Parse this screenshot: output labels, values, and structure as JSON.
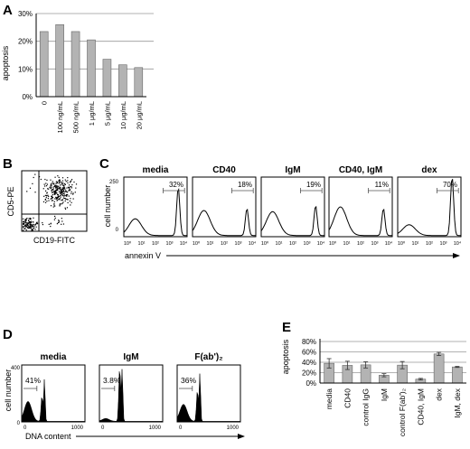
{
  "panels": {
    "A": {
      "letter": "A"
    },
    "B": {
      "letter": "B",
      "xlabel": "CD19-FITC",
      "ylabel": "CD5-PE"
    },
    "C": {
      "letter": "C",
      "ylabel": "cell number",
      "xlabel": "annexin V",
      "ytick_top": "250"
    },
    "D": {
      "letter": "D",
      "ylabel": "cell number",
      "xlabel": "DNA content",
      "ytick_top": "400",
      "xtick_left": "0",
      "xtick_right": "1000"
    },
    "E": {
      "letter": "E"
    }
  },
  "colors": {
    "bar_fill": "#b3b3b3",
    "bar_stroke": "#666666",
    "line": "#000000",
    "grid": "#999999"
  },
  "chart_data": [
    {
      "id": "A",
      "type": "bar",
      "categories": [
        "0",
        "100 ng/mL",
        "500 ng/mL",
        "1 µg/mL",
        "5 µg/mL",
        "10 µg/mL",
        "20 µg/mL"
      ],
      "values": [
        23.5,
        26,
        23.5,
        20.5,
        13.5,
        11.5,
        10.5
      ],
      "ylabel": "apoptosis",
      "ylim": [
        0,
        30
      ],
      "yticks": [
        "0%",
        "10%",
        "20%",
        "30%"
      ],
      "grid": true
    },
    {
      "id": "B",
      "type": "scatter",
      "xlabel": "CD19-FITC",
      "ylabel": "CD5-PE",
      "quadrant_lines": true
    },
    {
      "id": "C",
      "type": "area",
      "subpanels": [
        "media",
        "CD40",
        "IgM",
        "CD40, IgM",
        "dex"
      ],
      "gate_percent": [
        "32%",
        "18%",
        "19%",
        "11%",
        "70%"
      ],
      "xticks": [
        "10⁰",
        "10¹",
        "10²",
        "10³",
        "10⁴"
      ],
      "ylabel": "cell number",
      "xlabel": "annexin V",
      "ylim": [
        0,
        250
      ]
    },
    {
      "id": "D",
      "type": "area",
      "subpanels": [
        "media",
        "IgM",
        "F(ab')₂"
      ],
      "gate_percent": [
        "41%",
        "3.8%",
        "36%"
      ],
      "xticks": [
        "0",
        "1000"
      ],
      "ylabel": "cell number",
      "xlabel": "DNA content",
      "ylim": [
        0,
        400
      ]
    },
    {
      "id": "E",
      "type": "bar",
      "categories": [
        "media",
        "CD40",
        "control IgG",
        "IgM",
        "control F(ab')₂",
        "CD40, IgM",
        "dex",
        "IgM, dex"
      ],
      "values": [
        38,
        34,
        35,
        15,
        34.5,
        7.5,
        56,
        31
      ],
      "errors": [
        9,
        8,
        6,
        3,
        7,
        1.5,
        3,
        1
      ],
      "ylabel": "apoptosis",
      "ylim": [
        0,
        80
      ],
      "yticks": [
        "0%",
        "20%",
        "40%",
        "60%",
        "80%"
      ],
      "grid": true
    }
  ]
}
